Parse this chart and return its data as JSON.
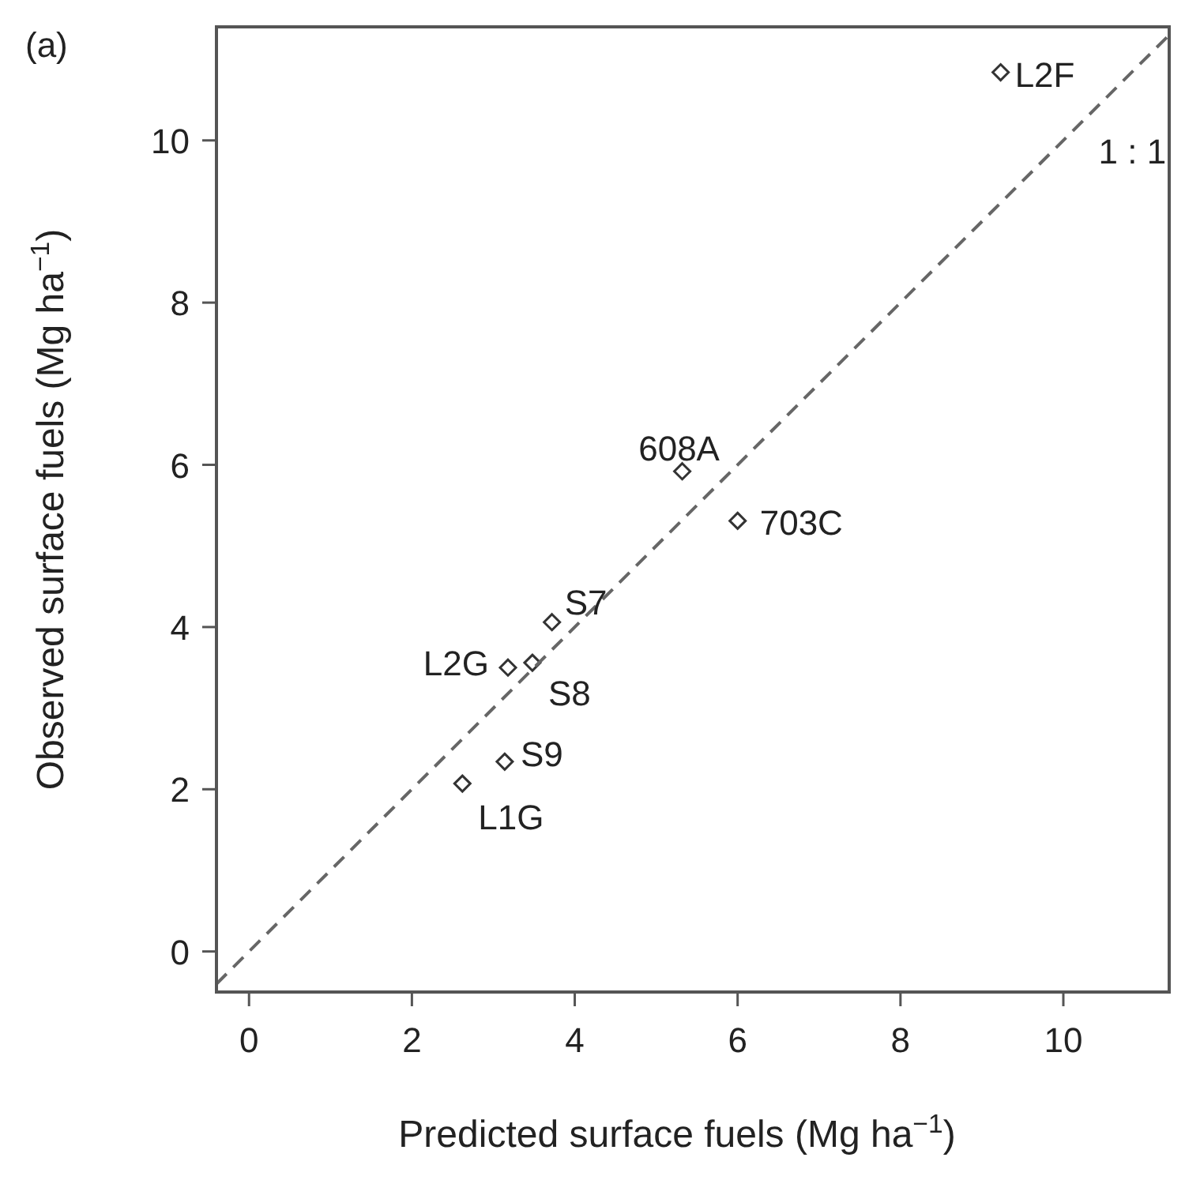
{
  "chart_data": {
    "type": "scatter",
    "title": "(a)",
    "xlabel": "Predicted surface fuels (Mg ha$^{−1}$)",
    "ylabel": "Observed surface fuels (Mg ha$^{−1}$)",
    "xlim": [
      -0.4,
      11.3
    ],
    "ylim": [
      -0.5,
      11.4
    ],
    "xticks": [
      0,
      2,
      4,
      6,
      8,
      10
    ],
    "yticks": [
      0,
      2,
      4,
      6,
      8,
      10
    ],
    "grid": false,
    "marker": "diamond",
    "series": [
      {
        "color": "#333333",
        "x": [
          9.23,
          5.32,
          6.0,
          3.72,
          3.18,
          3.48,
          3.14,
          2.62
        ],
        "values": [
          10.84,
          5.92,
          5.31,
          4.06,
          3.5,
          3.56,
          2.34,
          2.07
        ]
      },
      {
        "type": "line",
        "color": "#666666",
        "line_style": "dashed",
        "marker": "none",
        "x": [
          -0.4,
          11.3
        ],
        "values": [
          -0.4,
          11.3
        ]
      }
    ],
    "annotations": [
      {
        "text": "L2F",
        "x": 9.23,
        "y": 10.84
      },
      {
        "text": "608A",
        "x": 5.32,
        "y": 5.92
      },
      {
        "text": "703C",
        "x": 6.0,
        "y": 5.31
      },
      {
        "text": "S7",
        "x": 3.72,
        "y": 4.06
      },
      {
        "text": "L2G",
        "x": 3.18,
        "y": 3.5
      },
      {
        "text": "S8",
        "x": 3.48,
        "y": 3.56
      },
      {
        "text": "S9",
        "x": 3.14,
        "y": 2.34
      },
      {
        "text": "L1G",
        "x": 2.62,
        "y": 2.07
      },
      {
        "text": "1 : 1",
        "x": 10.2,
        "y": 10.2
      }
    ]
  }
}
